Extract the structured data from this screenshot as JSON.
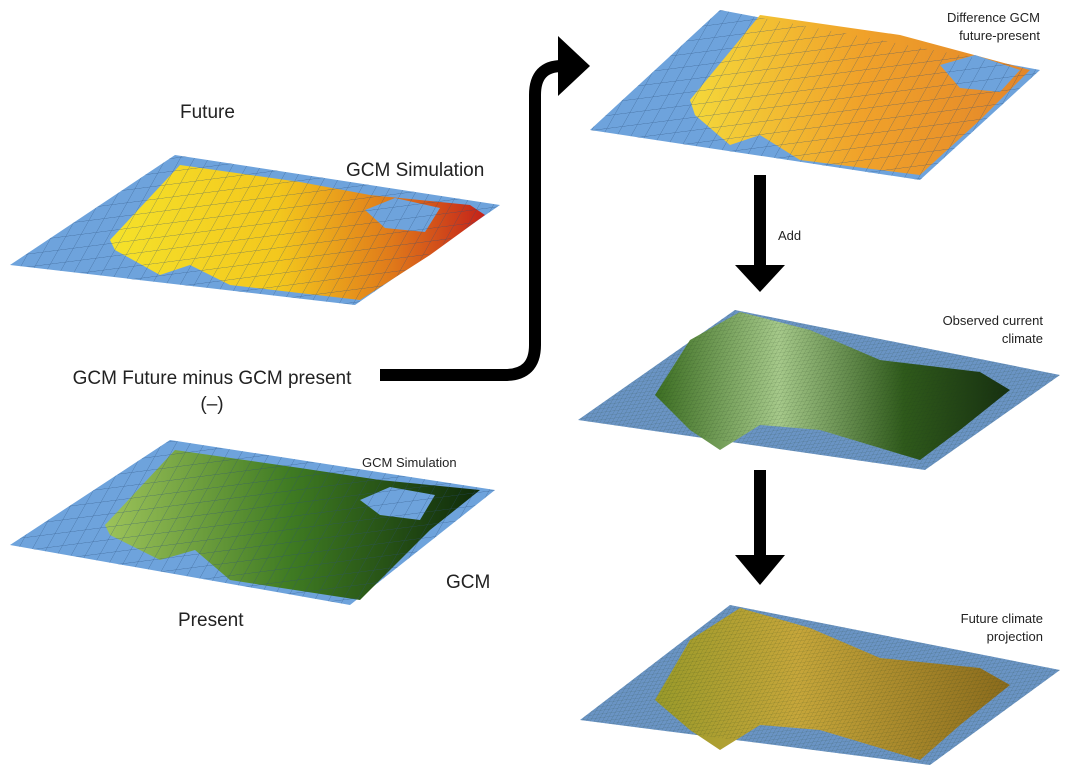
{
  "panels": {
    "future": {
      "label": "Future",
      "title": "GCM Simulation"
    },
    "present": {
      "title": "GCM Simulation",
      "model": "GCM",
      "label": "Present"
    },
    "difference": {
      "title_lines": [
        "Difference GCM",
        "future-present"
      ]
    },
    "observed": {
      "title_lines": [
        "Observed current",
        "climate"
      ]
    },
    "projection": {
      "title_lines": [
        "Future climate",
        "projection"
      ]
    }
  },
  "arrows": {
    "subtract": {
      "label_lines": [
        "GCM Future minus GCM present",
        "(–)"
      ]
    },
    "add": {
      "label": "Add"
    }
  }
}
